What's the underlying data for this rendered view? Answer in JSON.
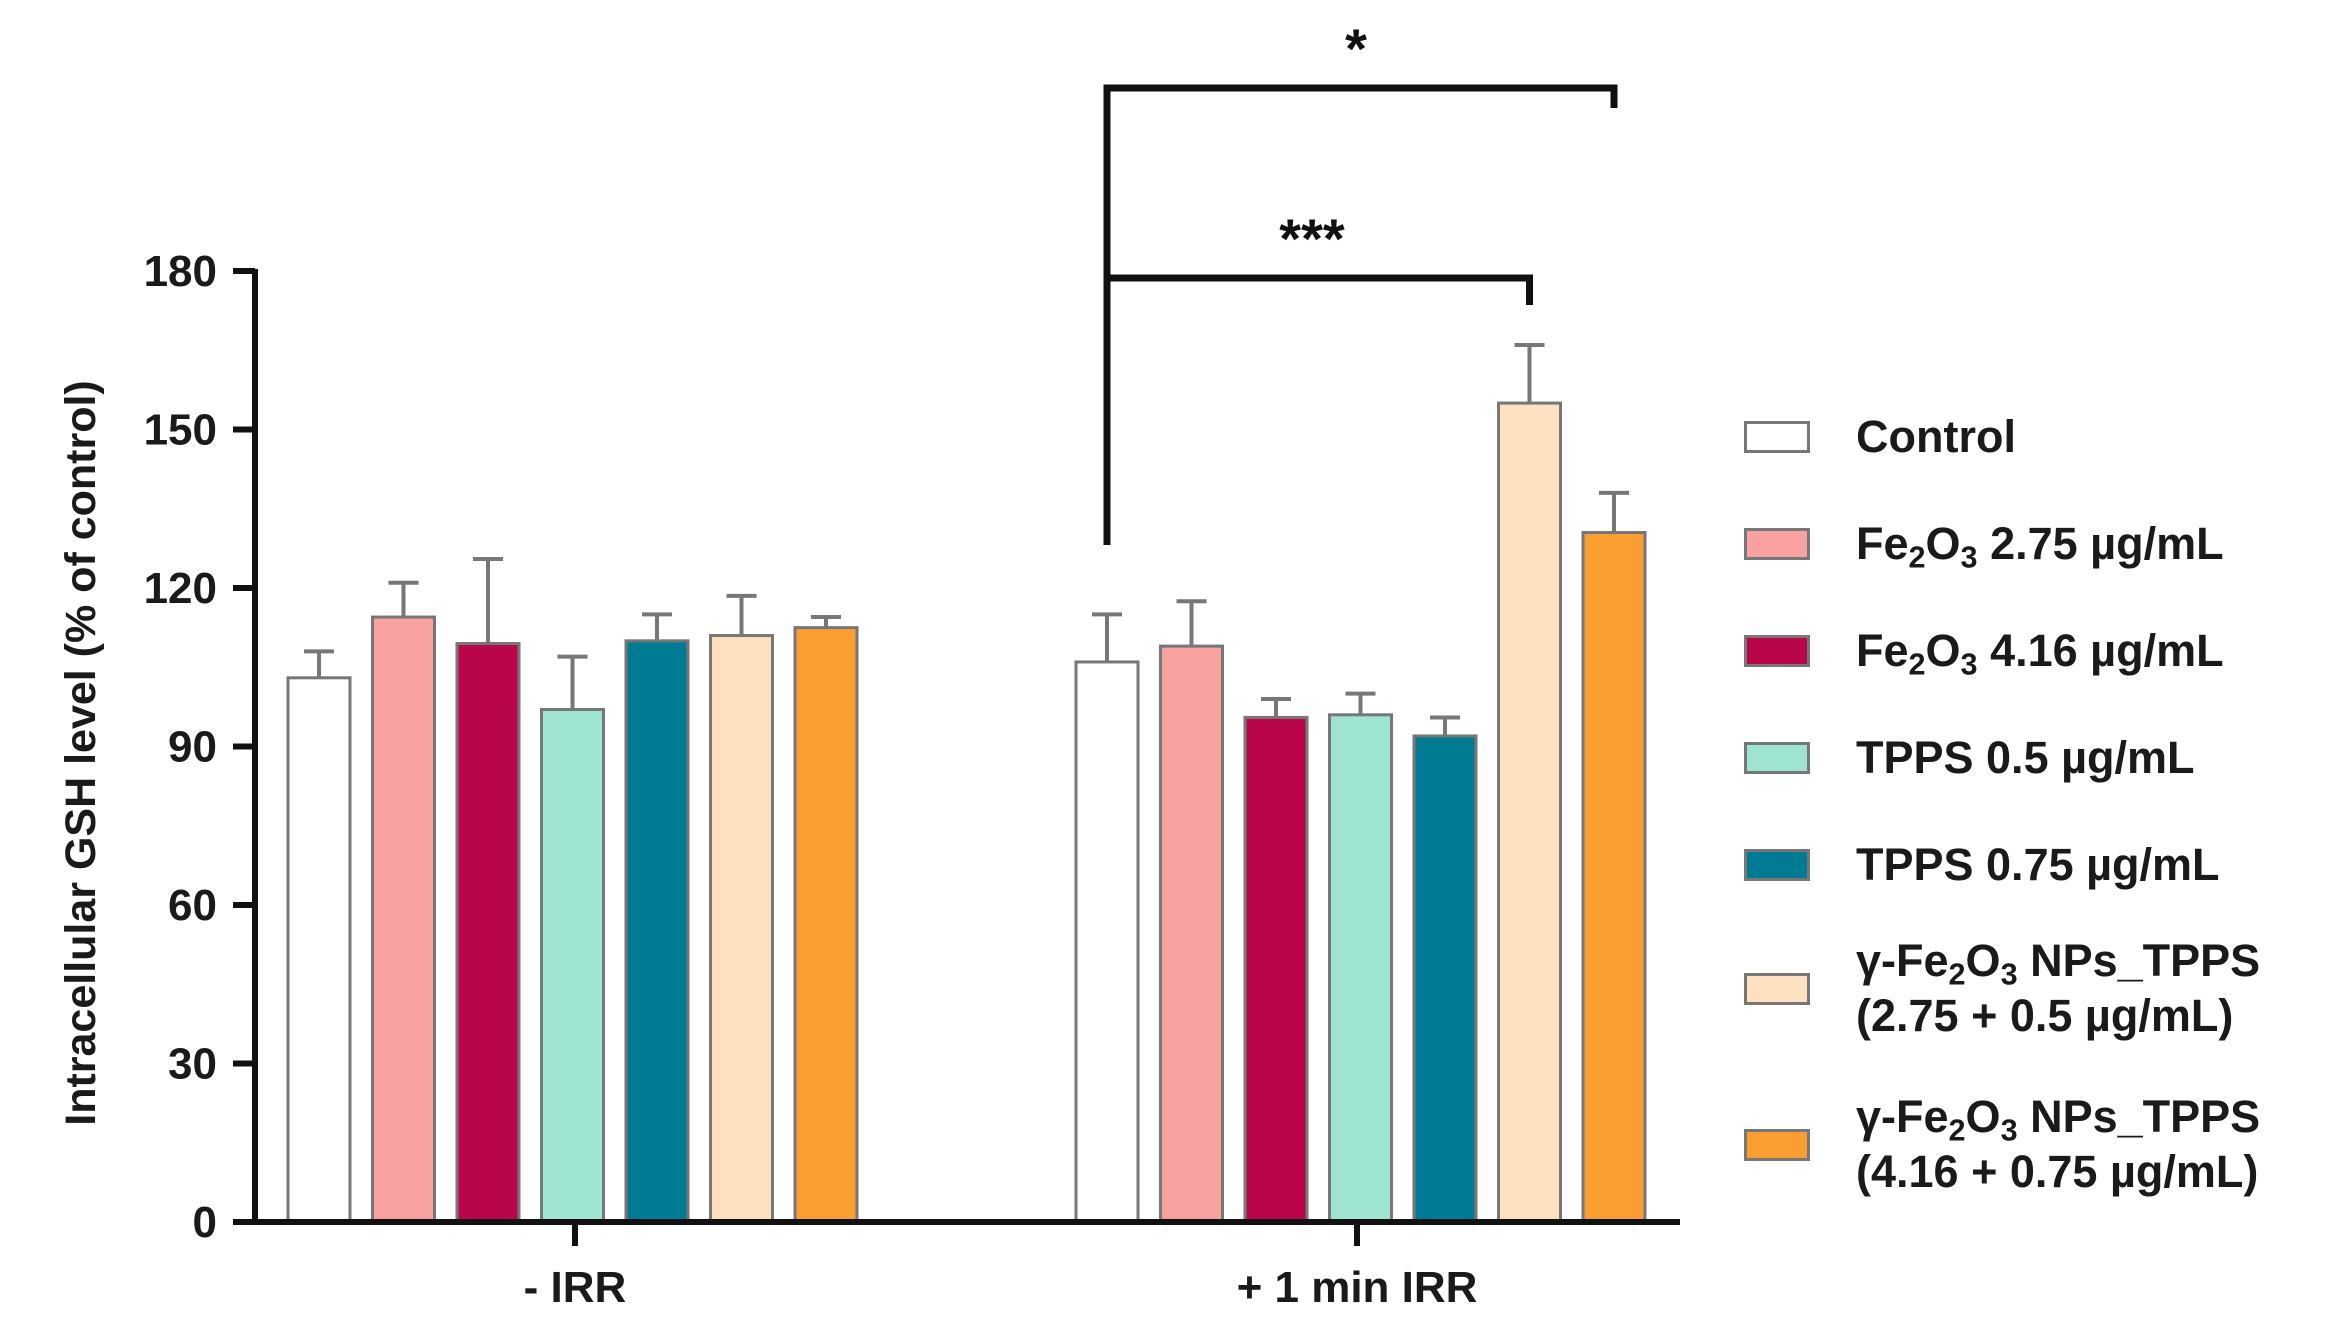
{
  "chart_data": {
    "type": "bar",
    "title": "",
    "xlabel": "",
    "ylabel": "Intracellular GSH level (% of control)",
    "ylim": [
      0,
      180
    ],
    "yticks": [
      0,
      30,
      60,
      90,
      120,
      150,
      180
    ],
    "categories": [
      "- IRR",
      "+ 1 min IRR"
    ],
    "series": [
      {
        "name": "Control",
        "color": "#ffffff",
        "values": [
          103,
          106
        ],
        "errors": [
          5,
          9
        ]
      },
      {
        "name": "Fe2O3 2.75 µg/mL",
        "color": "#f7a1a1",
        "values": [
          114.5,
          109
        ],
        "errors": [
          6.5,
          8.5
        ]
      },
      {
        "name": "Fe2O3 4.16 µg/mL",
        "color": "#b9054a",
        "values": [
          109.5,
          95.5
        ],
        "errors": [
          16,
          3.5
        ]
      },
      {
        "name": "TPPS 0.5 µg/mL",
        "color": "#9fe3d2",
        "values": [
          97,
          96
        ],
        "errors": [
          10,
          4
        ]
      },
      {
        "name": "TPPS 0.75 µg/mL",
        "color": "#007b93",
        "values": [
          110,
          92
        ],
        "errors": [
          5,
          3.5
        ]
      },
      {
        "name": "γ-Fe2O3 NPs_TPPS (2.75 + 0.5 µg/mL)",
        "color": "#fde0c0",
        "values": [
          111,
          155
        ],
        "errors": [
          7.5,
          11
        ]
      },
      {
        "name": "γ-Fe2O3 NPs_TPPS (4.16 + 0.75 µg/mL)",
        "color": "#fb9e31",
        "values": [
          112.5,
          130.5
        ],
        "errors": [
          2,
          7.5
        ]
      }
    ],
    "significance": [
      {
        "label": "*",
        "group": "+ 1 min IRR",
        "from_series": 0,
        "to_series": 6
      },
      {
        "label": "***",
        "group": "+ 1 min IRR",
        "from_series": 0,
        "to_series": 5
      }
    ],
    "legend": {
      "position": "right",
      "entries": [
        {
          "main": "Control",
          "line2": ""
        },
        {
          "prefix": "Fe",
          "sub1": "2",
          "mid": "O",
          "sub2": "3",
          "suffix": " 2.75 µg/mL",
          "line2": ""
        },
        {
          "prefix": "Fe",
          "sub1": "2",
          "mid": "O",
          "sub2": "3",
          "suffix": " 4.16 µg/mL",
          "line2": ""
        },
        {
          "main": "TPPS 0.5 µg/mL",
          "line2": ""
        },
        {
          "main": "TPPS 0.75 µg/mL",
          "line2": ""
        },
        {
          "prefix": "γ-Fe",
          "sub1": "2",
          "mid": "O",
          "sub2": "3",
          "suffix": " NPs_TPPS",
          "line2": "(2.75 + 0.5 µg/mL)"
        },
        {
          "prefix": "γ-Fe",
          "sub1": "2",
          "mid": "O",
          "sub2": "3",
          "suffix": " NPs_TPPS",
          "line2": "(4.16 + 0.75 µg/mL)"
        }
      ]
    }
  }
}
